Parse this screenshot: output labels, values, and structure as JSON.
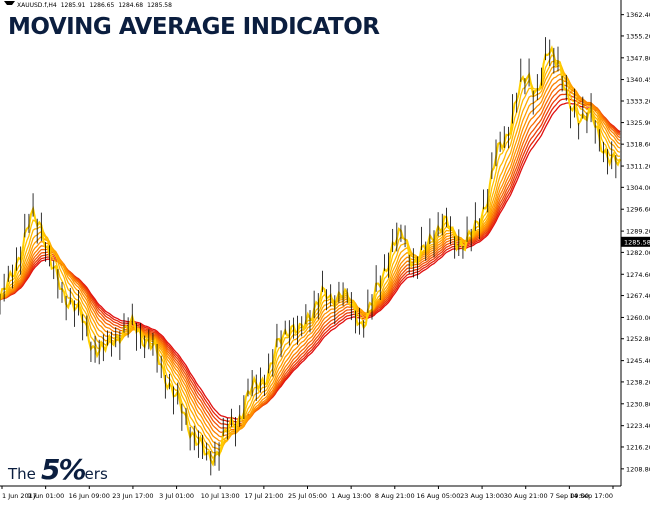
{
  "headline": "MOVING AVERAGE INDICATOR",
  "info_bar": {
    "symbol": "XAUUSD.f,H4",
    "open": "1285.91",
    "high": "1286.65",
    "low": "1284.68",
    "close": "1285.58"
  },
  "logo": {
    "the": "The",
    "five": "5%",
    "ers": "ers"
  },
  "colors": {
    "ma_fast": "#ffcf00",
    "ma_slow": "#e01010",
    "candle": "#000000",
    "current_price_box": "#000000"
  },
  "chart_data": {
    "type": "line",
    "xlabel": "",
    "ylabel": "",
    "grid": false,
    "ylim": [
      1203,
      1366
    ],
    "y_ticks": [
      "1362.40",
      "1355.20",
      "1347.80",
      "1340.45",
      "1333.20",
      "1325.90",
      "1318.60",
      "1311.20",
      "1304.00",
      "1296.60",
      "1289.20",
      "1282.00",
      "1274.60",
      "1267.40",
      "1260.00",
      "1252.80",
      "1245.40",
      "1238.20",
      "1230.80",
      "1223.40",
      "1216.20",
      "1208.80"
    ],
    "current_price": "1285.58",
    "x_ticks": [
      "1 Jun 2017",
      "9 Jun 01:00",
      "16 Jun 09:00",
      "23 Jun 17:00",
      "3 Jul 01:00",
      "10 Jul 13:00",
      "17 Jul 21:00",
      "25 Jul 05:00",
      "1 Aug 13:00",
      "8 Aug 21:00",
      "16 Aug 05:00",
      "23 Aug 13:00",
      "30 Aug 21:00",
      "7 Sep 09:00",
      "14 Sep 17:00"
    ],
    "price_path": [
      [
        0,
        1266
      ],
      [
        5,
        1273
      ],
      [
        10,
        1284
      ],
      [
        15,
        1294
      ],
      [
        20,
        1291
      ],
      [
        25,
        1276
      ],
      [
        30,
        1268
      ],
      [
        35,
        1265
      ],
      [
        40,
        1258
      ],
      [
        45,
        1250
      ],
      [
        50,
        1248
      ],
      [
        55,
        1254
      ],
      [
        60,
        1255
      ],
      [
        65,
        1258
      ],
      [
        70,
        1252
      ],
      [
        75,
        1248
      ],
      [
        80,
        1240
      ],
      [
        85,
        1232
      ],
      [
        90,
        1225
      ],
      [
        95,
        1218
      ],
      [
        100,
        1212
      ],
      [
        105,
        1215
      ],
      [
        110,
        1222
      ],
      [
        115,
        1226
      ],
      [
        120,
        1234
      ],
      [
        125,
        1238
      ],
      [
        130,
        1242
      ],
      [
        135,
        1252
      ],
      [
        140,
        1258
      ],
      [
        145,
        1254
      ],
      [
        150,
        1262
      ],
      [
        155,
        1268
      ],
      [
        160,
        1265
      ],
      [
        165,
        1270
      ],
      [
        170,
        1262
      ],
      [
        175,
        1258
      ],
      [
        180,
        1265
      ],
      [
        185,
        1275
      ],
      [
        190,
        1285
      ],
      [
        195,
        1288
      ],
      [
        200,
        1278
      ],
      [
        205,
        1282
      ],
      [
        210,
        1290
      ],
      [
        215,
        1292
      ],
      [
        220,
        1286
      ],
      [
        225,
        1285
      ],
      [
        230,
        1290
      ],
      [
        235,
        1300
      ],
      [
        240,
        1315
      ],
      [
        245,
        1322
      ],
      [
        250,
        1335
      ],
      [
        255,
        1342
      ],
      [
        260,
        1336
      ],
      [
        265,
        1350
      ],
      [
        270,
        1348
      ],
      [
        275,
        1330
      ],
      [
        280,
        1328
      ],
      [
        285,
        1330
      ],
      [
        290,
        1318
      ],
      [
        295,
        1315
      ],
      [
        300,
        1310
      ]
    ],
    "series": [
      {
        "period": 1
      },
      {
        "period": 2
      },
      {
        "period": 3
      },
      {
        "period": 4
      },
      {
        "period": 5
      },
      {
        "period": 6
      },
      {
        "period": 7
      },
      {
        "period": 8
      },
      {
        "period": 9
      },
      {
        "period": 10
      },
      {
        "period": 11
      },
      {
        "period": 12
      }
    ]
  }
}
